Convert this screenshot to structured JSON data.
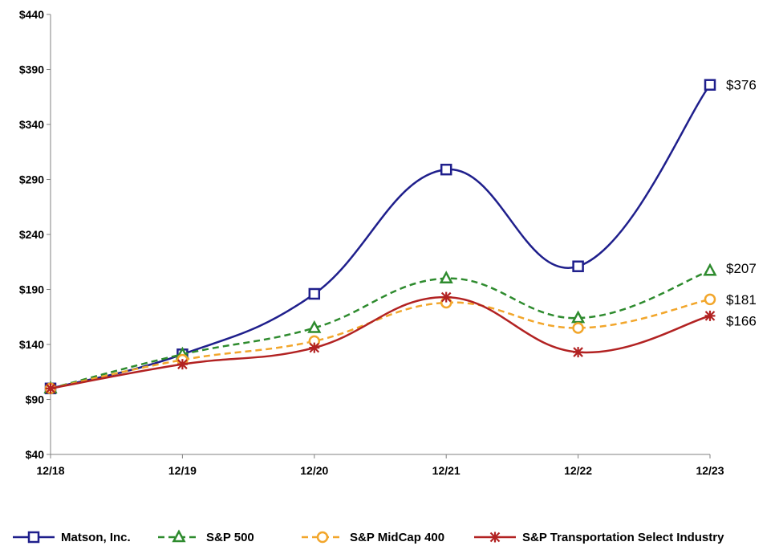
{
  "chart_data": {
    "type": "line",
    "title": "",
    "xlabel": "",
    "ylabel": "",
    "categories": [
      "12/18",
      "12/19",
      "12/20",
      "12/21",
      "12/22",
      "12/23"
    ],
    "y_tick_labels": [
      "$40",
      "$90",
      "$140",
      "$190",
      "$240",
      "$290",
      "$340",
      "$390",
      "$440"
    ],
    "y_ticks": [
      40,
      90,
      140,
      190,
      240,
      290,
      340,
      390,
      440
    ],
    "ylim": [
      40,
      440
    ],
    "grid": false,
    "legend_position": "bottom",
    "series": [
      {
        "name": "Matson, Inc.",
        "values": [
          100,
          131,
          186,
          299,
          211,
          376
        ],
        "end_label": "$376",
        "color": "#1f1f8c",
        "dash": "solid",
        "marker": "square"
      },
      {
        "name": "S&P 500",
        "values": [
          100,
          131,
          155,
          200,
          164,
          207
        ],
        "end_label": "$207",
        "color": "#2e8b2e",
        "dash": "dashed",
        "marker": "triangle"
      },
      {
        "name": "S&P MidCap 400",
        "values": [
          100,
          126,
          143,
          178,
          155,
          181
        ],
        "end_label": "$181",
        "color": "#f2a62b",
        "dash": "dashed",
        "marker": "circle"
      },
      {
        "name": "S&P Transportation Select Industry",
        "values": [
          100,
          122,
          137,
          183,
          133,
          166
        ],
        "end_label": "$166",
        "color": "#b22222",
        "dash": "solid",
        "marker": "star"
      }
    ]
  }
}
